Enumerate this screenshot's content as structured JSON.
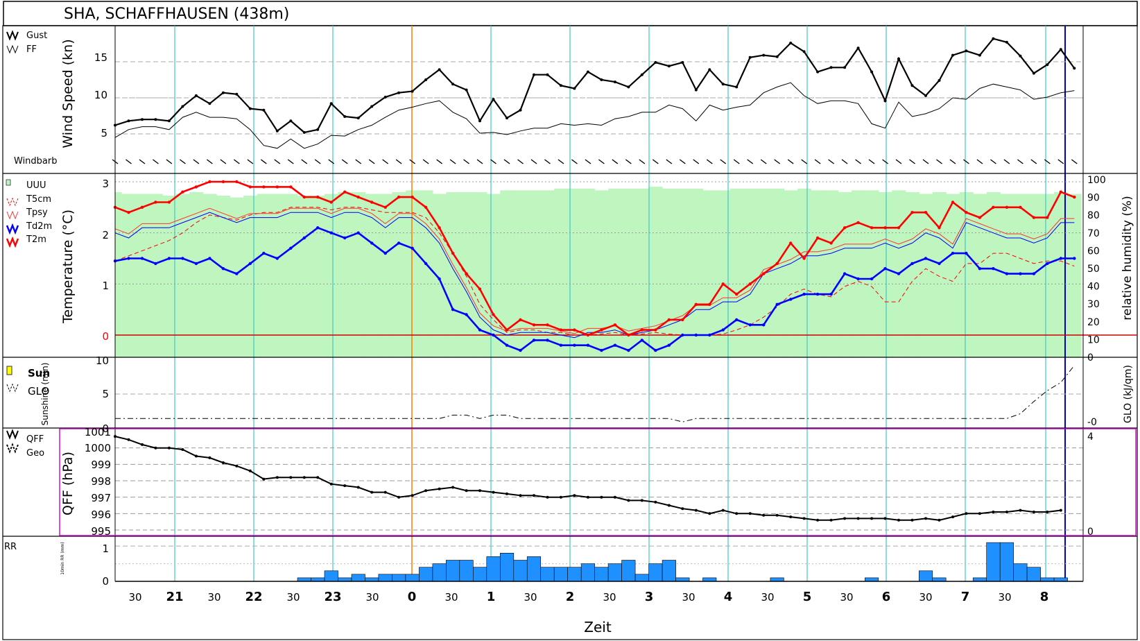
{
  "title": "SHA, SCHAFFHAUSEN (438m)",
  "xlabel": "Zeit",
  "x_ticks": [
    "30",
    "21",
    "30",
    "22",
    "30",
    "23",
    "30",
    "0",
    "30",
    "1",
    "30",
    "2",
    "30",
    "3",
    "30",
    "4",
    "30",
    "5",
    "30",
    "6",
    "30",
    "7",
    "30",
    "8"
  ],
  "colors": {
    "frame": "#000000",
    "vgrid": "#40c8c8",
    "now": "#ff7f00",
    "end": "#0000cc",
    "humidity": "#bff5bf",
    "rain": "#1e90ff",
    "pressure_box": "#cc00cc",
    "t2m": "#ff0000",
    "td2m": "#0000ff"
  },
  "chart_data": [
    {
      "type": "line",
      "ylabel": "Wind Speed (kn)",
      "legend": [
        "Gust",
        "FF"
      ],
      "windbarb_label": "Windbarb",
      "y_ticks": [
        "5",
        "10",
        "15"
      ],
      "ylim": [
        0,
        20
      ],
      "series": [
        {
          "name": "Gust",
          "values": [
            6.2,
            6.8,
            7,
            7,
            6.8,
            8.8,
            10.3,
            9.2,
            10.7,
            10.5,
            8.5,
            8.3,
            5.4,
            6.8,
            5.2,
            5.6,
            9.2,
            7.4,
            7.2,
            8.8,
            10.1,
            10.7,
            10.9,
            12.5,
            13.9,
            11.9,
            11.1,
            6.8,
            9.8,
            7.2,
            8.3,
            13.2,
            13.2,
            11.7,
            11.3,
            13.6,
            12.5,
            12.2,
            11.5,
            13.2,
            14.9,
            14.4,
            14.9,
            11.1,
            13.9,
            11.9,
            11.5,
            15.6,
            15.9,
            15.7,
            17.6,
            16.4,
            13.6,
            14.2,
            14.2,
            16.9,
            13.6,
            9.6,
            15.4,
            11.7,
            10.3,
            12.4,
            15.9,
            16.5,
            15.9,
            18.2,
            17.7,
            15.8,
            13.4,
            14.6,
            16.7,
            14.1
          ]
        },
        {
          "name": "FF",
          "values": [
            4.5,
            5.6,
            6,
            6,
            5.6,
            7.3,
            8,
            7.3,
            7.3,
            7.1,
            5.6,
            3.4,
            3,
            4.3,
            3,
            3.6,
            4.8,
            4.7,
            5.6,
            6.2,
            7.3,
            8.3,
            8.7,
            9.2,
            9.6,
            8,
            7.1,
            5.1,
            5.2,
            4.9,
            5.4,
            5.8,
            5.8,
            6.4,
            6.2,
            6.4,
            6.2,
            7.1,
            7.4,
            8,
            8,
            9,
            8.5,
            6.8,
            9,
            8.3,
            8.7,
            9,
            10.7,
            11.5,
            12.1,
            10.3,
            9.2,
            9.6,
            9.6,
            9.2,
            6.4,
            5.8,
            9.4,
            7.4,
            7.8,
            8.5,
            10,
            9.8,
            11.3,
            11.9,
            11.5,
            11.1,
            9.8,
            10.1,
            10.7,
            11
          ]
        }
      ]
    },
    {
      "type": "line",
      "ylabel": "Temperature (°C)",
      "ylabel_right": "relative humidity (%)",
      "legend": [
        "UUU",
        "T5cm",
        "Tpsy",
        "Td2m",
        "T2m"
      ],
      "y_ticks": [
        "0",
        "1",
        "2",
        "3"
      ],
      "y_right_ticks": [
        "0",
        "10",
        "20",
        "30",
        "40",
        "50",
        "60",
        "70",
        "80",
        "90",
        "100"
      ],
      "ylim": [
        -0.4,
        3
      ],
      "series": [
        {
          "name": "UUU",
          "values": [
            93,
            92,
            92,
            92,
            91,
            92,
            93,
            92,
            91,
            90,
            91,
            92,
            92,
            92,
            91,
            91,
            92,
            93,
            93,
            92,
            92,
            93,
            94,
            94,
            92,
            93,
            93,
            93,
            92,
            94,
            94,
            94,
            94,
            95,
            95,
            95,
            94,
            95,
            95,
            95,
            96,
            95,
            95,
            95,
            94,
            94,
            95,
            95,
            95,
            95,
            94,
            95,
            94,
            94,
            93,
            94,
            94,
            93,
            94,
            93,
            92,
            93,
            92,
            93,
            92,
            93,
            92,
            92,
            92,
            92,
            93,
            92
          ]
        },
        {
          "name": "T5cm",
          "values": [
            1.45,
            1.55,
            1.65,
            1.75,
            1.85,
            2,
            2.2,
            2.35,
            2.3,
            2.25,
            2.35,
            2.4,
            2.4,
            2.5,
            2.5,
            2.5,
            2.45,
            2.5,
            2.5,
            2.45,
            2.4,
            2.4,
            2.4,
            2.3,
            2,
            1.6,
            1.15,
            0.6,
            0.3,
            0.05,
            0.1,
            0.1,
            0.05,
            0.05,
            0,
            0,
            0.02,
            0.05,
            0,
            0.02,
            0.05,
            0.02,
            0,
            0,
            0,
            0.02,
            0.1,
            0.2,
            0.35,
            0.55,
            0.8,
            0.9,
            0.8,
            0.75,
            0.95,
            1.05,
            0.95,
            0.65,
            0.65,
            1.05,
            1.3,
            1.15,
            1.05,
            1.4,
            1.4,
            1.6,
            1.6,
            1.5,
            1.4,
            1.45,
            1.45,
            1.35
          ]
        },
        {
          "name": "Tpsy",
          "values": [
            2,
            1.9,
            2.1,
            2.1,
            2.1,
            2.2,
            2.3,
            2.4,
            2.3,
            2.2,
            2.3,
            2.3,
            2.3,
            2.4,
            2.4,
            2.4,
            2.3,
            2.4,
            2.4,
            2.3,
            2.1,
            2.3,
            2.3,
            2.1,
            1.8,
            1.3,
            0.85,
            0.35,
            0.1,
            0,
            0.05,
            0.05,
            0.05,
            0,
            -0.05,
            0.05,
            0.05,
            0.1,
            0,
            0.05,
            0.1,
            0.2,
            0.3,
            0.5,
            0.5,
            0.65,
            0.65,
            0.8,
            1.2,
            1.3,
            1.4,
            1.55,
            1.55,
            1.6,
            1.7,
            1.7,
            1.7,
            1.8,
            1.7,
            1.8,
            2,
            1.9,
            1.7,
            2.2,
            2.1,
            2,
            1.9,
            1.9,
            1.8,
            1.9,
            2.2,
            2.2
          ]
        },
        {
          "name": "Td2m",
          "values": [
            1.45,
            1.5,
            1.5,
            1.4,
            1.5,
            1.5,
            1.4,
            1.5,
            1.3,
            1.2,
            1.4,
            1.6,
            1.5,
            1.7,
            1.9,
            2.1,
            2,
            1.9,
            2,
            1.8,
            1.6,
            1.8,
            1.7,
            1.4,
            1.1,
            0.5,
            0.4,
            0.1,
            0,
            -0.2,
            -0.3,
            -0.1,
            -0.1,
            -0.2,
            -0.2,
            -0.2,
            -0.3,
            -0.2,
            -0.3,
            -0.1,
            -0.3,
            -0.2,
            0,
            0,
            0,
            0.1,
            0.3,
            0.2,
            0.2,
            0.6,
            0.7,
            0.8,
            0.8,
            0.8,
            1.2,
            1.1,
            1.1,
            1.3,
            1.2,
            1.4,
            1.5,
            1.4,
            1.6,
            1.6,
            1.3,
            1.3,
            1.2,
            1.2,
            1.2,
            1.4,
            1.5,
            1.5
          ]
        },
        {
          "name": "T2m",
          "values": [
            2.5,
            2.4,
            2.5,
            2.6,
            2.6,
            2.8,
            2.9,
            3,
            3,
            3,
            2.9,
            2.9,
            2.9,
            2.9,
            2.7,
            2.7,
            2.6,
            2.8,
            2.7,
            2.6,
            2.5,
            2.7,
            2.7,
            2.5,
            2.1,
            1.6,
            1.2,
            0.9,
            0.4,
            0.1,
            0.3,
            0.2,
            0.2,
            0.1,
            0.1,
            0,
            0.1,
            0.2,
            0,
            0.1,
            0.1,
            0.3,
            0.3,
            0.6,
            0.6,
            1,
            0.8,
            1,
            1.2,
            1.4,
            1.8,
            1.5,
            1.9,
            1.8,
            2.1,
            2.2,
            2.1,
            2.1,
            2.1,
            2.4,
            2.4,
            2.1,
            2.6,
            2.4,
            2.3,
            2.5,
            2.5,
            2.5,
            2.3,
            2.3,
            2.8,
            2.7
          ]
        }
      ]
    },
    {
      "type": "bar",
      "ylabel": "Sunshine (min)",
      "ylabel_right": "GLO (kJ/qm)",
      "legend": [
        "Sun",
        "GLO"
      ],
      "y_ticks": [
        "0",
        "5",
        "10"
      ],
      "y_right_ticks": [
        "-0"
      ],
      "ylim": [
        0,
        10
      ],
      "series": [
        {
          "name": "Sun",
          "values": [
            0,
            0,
            0,
            0,
            0,
            0,
            0,
            0,
            0,
            0,
            0,
            0,
            0,
            0,
            0,
            0,
            0,
            0,
            0,
            0,
            0,
            0,
            0,
            0,
            0,
            0,
            0,
            0,
            0,
            0,
            0,
            0,
            0,
            0,
            0,
            0,
            0,
            0,
            0,
            0,
            0,
            0,
            0,
            0,
            0,
            0,
            0,
            0,
            0,
            0,
            0,
            0,
            0,
            0,
            0,
            0,
            0,
            0,
            0,
            0,
            0,
            0,
            0,
            0,
            0,
            0,
            0,
            0,
            0,
            0,
            0,
            0
          ]
        },
        {
          "name": "GLO",
          "values": [
            1.4,
            1.4,
            1.4,
            1.4,
            1.4,
            1.4,
            1.4,
            1.4,
            1.4,
            1.4,
            1.4,
            1.4,
            1.4,
            1.4,
            1.4,
            1.4,
            1.4,
            1.4,
            1.4,
            1.4,
            1.4,
            1.4,
            1.4,
            1.4,
            1.4,
            1.9,
            1.9,
            1.4,
            1.9,
            1.9,
            1.4,
            1.4,
            1.4,
            1.4,
            1.4,
            1.4,
            1.4,
            1.4,
            1.4,
            1.4,
            1.4,
            1.4,
            0.9,
            1.4,
            1.4,
            1.4,
            1.4,
            1.4,
            1.4,
            1.4,
            1.4,
            1.4,
            1.4,
            1.4,
            1.4,
            1.4,
            1.4,
            1.4,
            1.4,
            1.4,
            1.4,
            1.4,
            1.4,
            1.4,
            1.4,
            1.4,
            1.4,
            2.1,
            3.9,
            5.5,
            6.7,
            9.2
          ]
        }
      ]
    },
    {
      "type": "line",
      "ylabel": "QFF (hPa)",
      "legend": [
        "QFF",
        "Geo"
      ],
      "y_ticks": [
        "995",
        "996",
        "997",
        "998",
        "999",
        "1000",
        "1001"
      ],
      "y_right_ticks": [
        "0",
        "4"
      ],
      "ylim": [
        994.7,
        1001.3
      ],
      "series": [
        {
          "name": "QFF",
          "values": [
            1000.7,
            1000.5,
            1000.2,
            1000,
            1000,
            999.9,
            999.5,
            999.4,
            999.1,
            998.9,
            998.6,
            998.1,
            998.2,
            998.2,
            998.2,
            998.2,
            997.8,
            997.7,
            997.6,
            997.3,
            997.3,
            997,
            997.1,
            997.4,
            997.5,
            997.6,
            997.4,
            997.4,
            997.3,
            997.2,
            997.1,
            997.1,
            997,
            997,
            997.1,
            997,
            997,
            997,
            996.8,
            996.8,
            996.7,
            996.5,
            996.3,
            996.2,
            996,
            996.2,
            996,
            996,
            995.9,
            995.9,
            995.8,
            995.7,
            995.6,
            995.6,
            995.7,
            995.7,
            995.7,
            995.7,
            995.6,
            995.6,
            995.7,
            995.6,
            995.8,
            996,
            996,
            996.1,
            996.1,
            996.2,
            996.1,
            996.1,
            996.2
          ]
        }
      ]
    },
    {
      "type": "bar",
      "ylabel": "10min RR (mm)",
      "legend": [
        "RR"
      ],
      "y_ticks": [
        "0",
        "1"
      ],
      "ylim": [
        0,
        1.2
      ],
      "series": [
        {
          "name": "RR",
          "values": [
            0,
            0,
            0,
            0,
            0,
            0,
            0,
            0,
            0,
            0,
            0,
            0,
            0,
            0,
            0.1,
            0.1,
            0.3,
            0.1,
            0.2,
            0.1,
            0.2,
            0.2,
            0.2,
            0.4,
            0.5,
            0.6,
            0.6,
            0.4,
            0.7,
            0.8,
            0.6,
            0.7,
            0.4,
            0.4,
            0.4,
            0.5,
            0.4,
            0.5,
            0.6,
            0.2,
            0.5,
            0.6,
            0.1,
            0,
            0.1,
            0,
            0,
            0,
            0,
            0.1,
            0,
            0,
            0,
            0,
            0,
            0,
            0.1,
            0,
            0,
            0,
            0.3,
            0.1,
            0,
            0,
            0.1,
            1.1,
            1.1,
            0.5,
            0.4,
            0.1,
            0.1,
            0
          ]
        }
      ]
    }
  ]
}
